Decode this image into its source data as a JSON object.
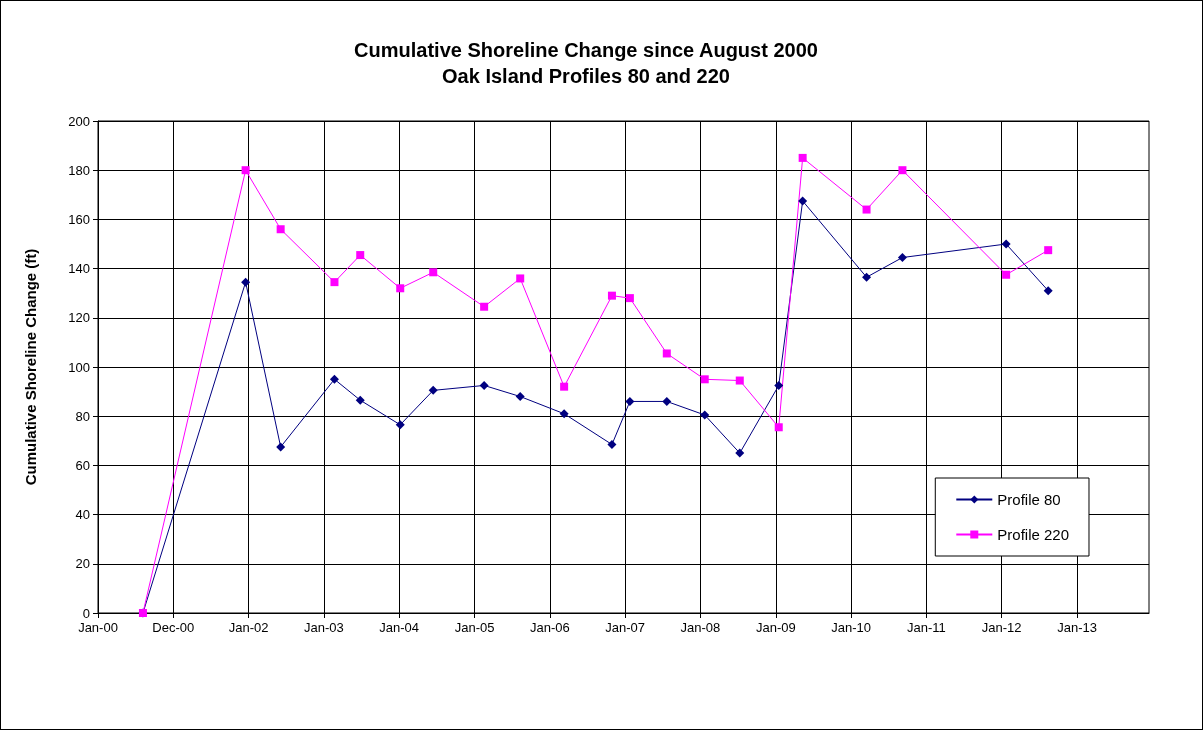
{
  "chart_data": {
    "type": "line",
    "title": "Cumulative Shoreline Change since August 2000",
    "subtitle": "Oak Island Profiles 80 and 220",
    "ylabel": "Cumulative Shoreline Change (ft)",
    "x": [
      "2000-08-06",
      "2001-12-17",
      "2002-06-05",
      "2003-02-21",
      "2003-06-26",
      "2004-01-06",
      "2004-06-14",
      "2005-02-16",
      "2005-08-10",
      "2006-03-11",
      "2006-10-29",
      "2007-01-24",
      "2007-07-22",
      "2008-01-22",
      "2008-07-10",
      "2009-01-15",
      "2009-05-11",
      "2010-03-17",
      "2010-09-07",
      "2012-01-23",
      "2012-08-14"
    ],
    "series": [
      {
        "name": "Profile 80",
        "color": "#000080",
        "marker": "diamond",
        "values": [
          0,
          134.5,
          67.5,
          95,
          86.5,
          76.5,
          90.5,
          92.5,
          88,
          81,
          68.5,
          86,
          86,
          80.5,
          65,
          92.5,
          167.5,
          136.5,
          144.5,
          150,
          131
        ]
      },
      {
        "name": "Profile 220",
        "color": "#ff00ff",
        "marker": "square",
        "values": [
          0,
          180,
          156,
          134.5,
          145.5,
          132,
          138.5,
          124.5,
          136,
          92,
          129,
          128,
          105.5,
          95,
          94.5,
          75.5,
          185,
          164,
          180,
          137.5,
          147.5
        ]
      }
    ],
    "xlim": [
      "2000-01-01",
      "2013-12-16"
    ],
    "xticks": [
      {
        "value": "2000-01-01",
        "label": "Jan-00"
      },
      {
        "value": "2000-12-31",
        "label": "Dec-00"
      },
      {
        "value": "2002-01-01",
        "label": "Jan-02"
      },
      {
        "value": "2003-01-01",
        "label": "Jan-03"
      },
      {
        "value": "2004-01-01",
        "label": "Jan-04"
      },
      {
        "value": "2005-01-01",
        "label": "Jan-05"
      },
      {
        "value": "2006-01-01",
        "label": "Jan-06"
      },
      {
        "value": "2007-01-01",
        "label": "Jan-07"
      },
      {
        "value": "2008-01-01",
        "label": "Jan-08"
      },
      {
        "value": "2009-01-01",
        "label": "Jan-09"
      },
      {
        "value": "2010-01-01",
        "label": "Jan-10"
      },
      {
        "value": "2011-01-01",
        "label": "Jan-11"
      },
      {
        "value": "2012-01-01",
        "label": "Jan-12"
      },
      {
        "value": "2013-01-01",
        "label": "Jan-13"
      }
    ],
    "ylim": [
      0,
      200
    ],
    "yticks": [
      0,
      20,
      40,
      60,
      80,
      100,
      120,
      140,
      160,
      180,
      200
    ],
    "grid": true,
    "legend": "bottom right",
    "line_style": "solid"
  }
}
